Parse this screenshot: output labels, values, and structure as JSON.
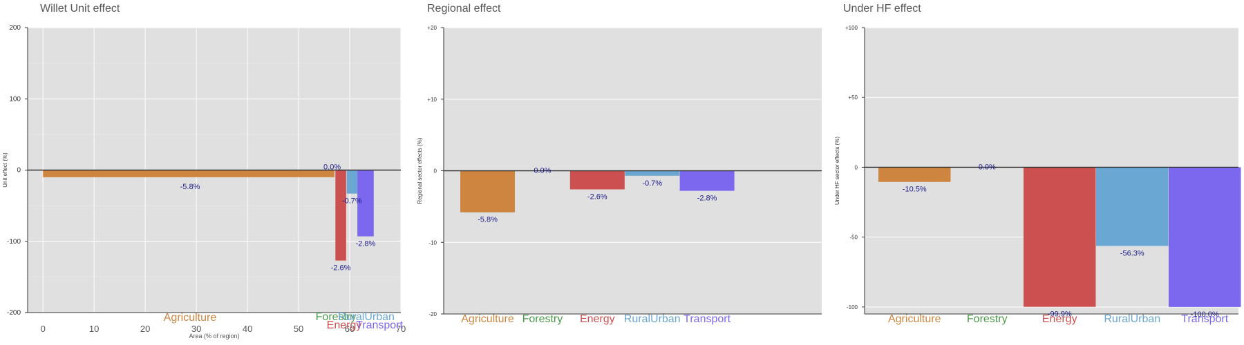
{
  "chart_data": [
    {
      "type": "bar",
      "title": "Willet Unit effect",
      "ylabel": "Unit effect (%)",
      "xlabel": "Area (% of region)",
      "ylim": [
        -200,
        200
      ],
      "xlim": [
        -3,
        70
      ],
      "yticks": [
        "200",
        "100",
        "0",
        "-100",
        "-200"
      ],
      "ytick_values": [
        200,
        100,
        0,
        -100,
        -200
      ],
      "xticks": [
        "0",
        "10",
        "20",
        "30",
        "40",
        "50",
        "60",
        "70"
      ],
      "xtick_values": [
        0,
        10,
        20,
        30,
        40,
        50,
        60,
        70
      ],
      "grid": true,
      "colors": [
        "#cd853f",
        "#4a9a4a",
        "#cd5050",
        "#6aa7d2",
        "#7b68ee"
      ],
      "categories": [
        "Agriculture",
        "Forestry",
        "Energy",
        "RuralUrban",
        "Transport"
      ],
      "x_start": [
        0,
        57.0,
        57.2,
        59.4,
        61.5
      ],
      "x_end": [
        57.0,
        57.2,
        59.3,
        61.5,
        64.7
      ],
      "values": [
        -10,
        0,
        -127,
        -33,
        -93
      ],
      "labels": [
        "-5.8%",
        "0.0%",
        "-2.6%",
        "-0.7%",
        "-2.8%"
      ]
    },
    {
      "type": "bar",
      "title": "Regional effect",
      "ylabel": "Regional sector effects (%)",
      "ylim": [
        -20,
        20
      ],
      "yticks": [
        "+20",
        "+10",
        "0",
        "-10",
        "-20"
      ],
      "ytick_values": [
        20,
        10,
        0,
        -10,
        -20
      ],
      "grid": true,
      "colors": [
        "#cd853f",
        "#4a9a4a",
        "#cd5050",
        "#6aa7d2",
        "#7b68ee"
      ],
      "categories": [
        "Agriculture",
        "Forestry",
        "Energy",
        "RuralUrban",
        "Transport"
      ],
      "values": [
        -5.8,
        0.0,
        -2.6,
        -0.7,
        -2.8
      ],
      "labels": [
        "-5.8%",
        "0.0%",
        "-2.6%",
        "-0.7%",
        "-2.8%"
      ]
    },
    {
      "type": "bar",
      "title": "Under HF effect",
      "ylabel": "Under HF sector effects (%)",
      "ylim": [
        -105,
        100
      ],
      "yticks": [
        "+100",
        "+50",
        "0",
        "-50",
        "-100"
      ],
      "ytick_values": [
        100,
        50,
        0,
        -50,
        -100
      ],
      "grid": true,
      "colors": [
        "#cd853f",
        "#4a9a4a",
        "#cd5050",
        "#6aa7d2",
        "#7b68ee"
      ],
      "categories": [
        "Agriculture",
        "Forestry",
        "Energy",
        "RuralUrban",
        "Transport"
      ],
      "values": [
        -10.5,
        0.0,
        -99.9,
        -56.3,
        -100.0
      ],
      "labels": [
        "-10.5%",
        "0.0%",
        "-99.9%",
        "-56.3%",
        "-100.0%"
      ]
    }
  ]
}
